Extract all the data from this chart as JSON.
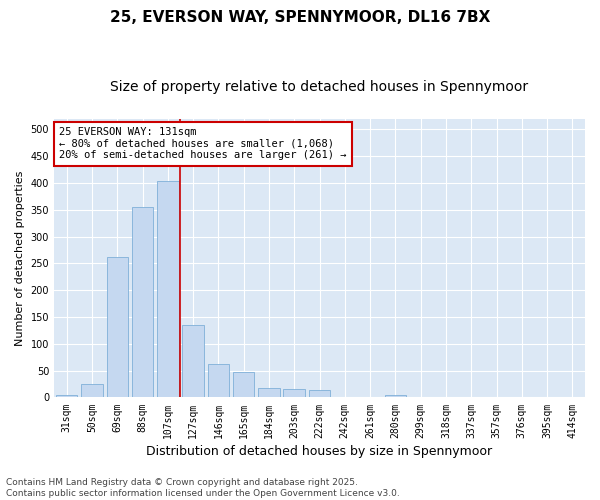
{
  "title1": "25, EVERSON WAY, SPENNYMOOR, DL16 7BX",
  "title2": "Size of property relative to detached houses in Spennymoor",
  "xlabel": "Distribution of detached houses by size in Spennymoor",
  "ylabel": "Number of detached properties",
  "categories": [
    "31sqm",
    "50sqm",
    "69sqm",
    "88sqm",
    "107sqm",
    "127sqm",
    "146sqm",
    "165sqm",
    "184sqm",
    "203sqm",
    "222sqm",
    "242sqm",
    "261sqm",
    "280sqm",
    "299sqm",
    "318sqm",
    "337sqm",
    "357sqm",
    "376sqm",
    "395sqm",
    "414sqm"
  ],
  "values": [
    4,
    26,
    262,
    355,
    403,
    135,
    63,
    48,
    17,
    16,
    14,
    0,
    0,
    5,
    0,
    1,
    0,
    0,
    0,
    0,
    0
  ],
  "bar_color": "#c5d8f0",
  "bar_edge_color": "#7fb0d8",
  "vline_color": "#cc0000",
  "annotation_text": "25 EVERSON WAY: 131sqm\n← 80% of detached houses are smaller (1,068)\n20% of semi-detached houses are larger (261) →",
  "annotation_box_facecolor": "#ffffff",
  "annotation_box_edgecolor": "#cc0000",
  "ylim": [
    0,
    520
  ],
  "yticks": [
    0,
    50,
    100,
    150,
    200,
    250,
    300,
    350,
    400,
    450,
    500
  ],
  "plot_bg_color": "#dce8f5",
  "fig_bg_color": "#ffffff",
  "grid_color": "#ffffff",
  "footer": "Contains HM Land Registry data © Crown copyright and database right 2025.\nContains public sector information licensed under the Open Government Licence v3.0.",
  "title1_fontsize": 11,
  "title2_fontsize": 10,
  "xlabel_fontsize": 9,
  "ylabel_fontsize": 8,
  "tick_fontsize": 7,
  "annotation_fontsize": 7.5,
  "footer_fontsize": 6.5
}
